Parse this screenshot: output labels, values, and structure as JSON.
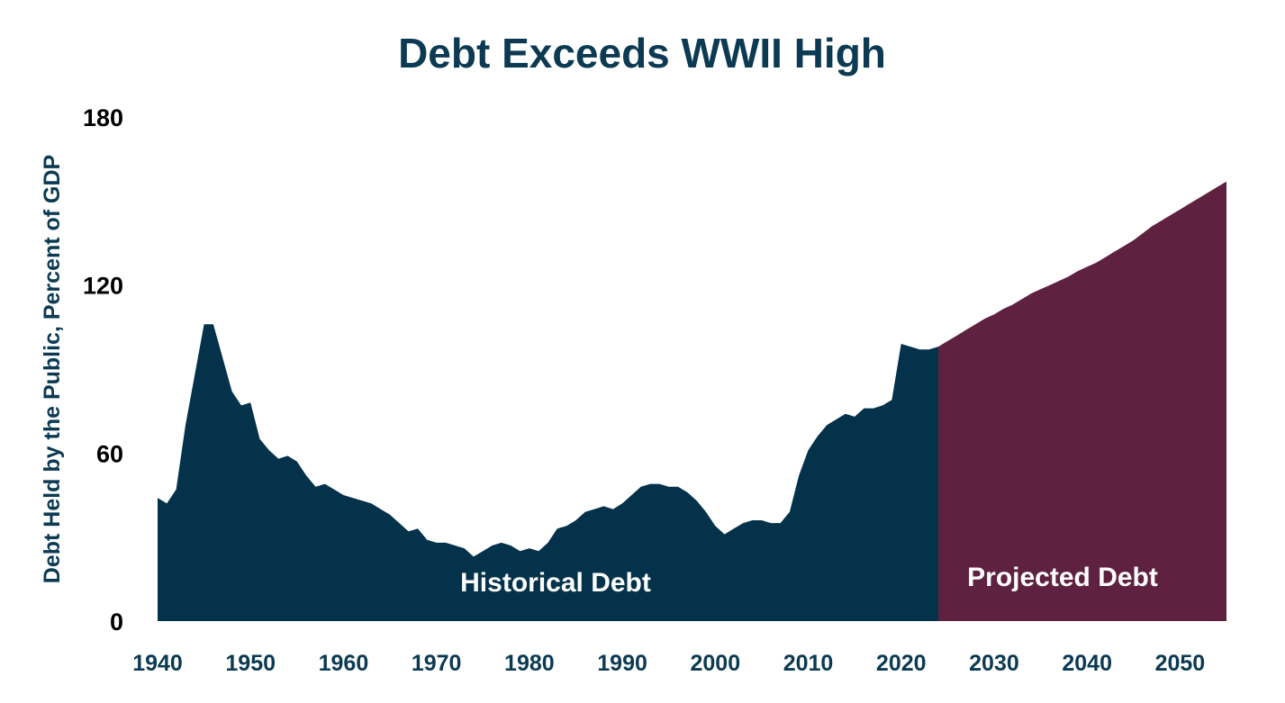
{
  "chart_data": {
    "type": "area",
    "title": "Debt Exceeds WWII High",
    "xlabel": "",
    "ylabel": "Debt Held by the Public, Percent of GDP",
    "xlim": [
      1940,
      2055
    ],
    "ylim": [
      0,
      180
    ],
    "yticks": [
      0,
      60,
      120,
      180
    ],
    "xticks": [
      1940,
      1950,
      1960,
      1970,
      1980,
      1990,
      2000,
      2010,
      2020,
      2030,
      2040,
      2050
    ],
    "grid": false,
    "colors": {
      "historical": "#03324a",
      "projected": "#5e2140",
      "title": "#0b3a52",
      "ytick": "#000000",
      "xtick": "#0b3a52"
    },
    "series": [
      {
        "name": "Historical Debt",
        "x_start": 1940,
        "values": [
          44,
          42,
          47,
          70,
          88,
          106,
          106,
          94,
          82,
          77,
          78,
          65,
          61,
          58,
          59,
          57,
          52,
          48,
          49,
          47,
          45,
          44,
          43,
          42,
          40,
          38,
          35,
          32,
          33,
          29,
          28,
          28,
          27,
          26,
          23,
          25,
          27,
          28,
          27,
          25,
          26,
          25,
          28,
          33,
          34,
          36,
          39,
          40,
          41,
          40,
          42,
          45,
          48,
          49,
          49,
          48,
          48,
          46,
          43,
          39,
          34,
          31,
          33,
          35,
          36,
          36,
          35,
          35,
          39,
          52,
          61,
          66,
          70,
          72,
          74,
          73,
          76,
          76,
          77,
          79,
          99,
          98,
          97,
          97,
          98
        ]
      },
      {
        "name": "Projected Debt",
        "x_start": 2024,
        "values": [
          98,
          100,
          102,
          104,
          106,
          108,
          109.5,
          111.5,
          113,
          115,
          117,
          118.5,
          120,
          121.5,
          123,
          125,
          126.5,
          128,
          130,
          132,
          134,
          136,
          138.5,
          141,
          143,
          145,
          147,
          149,
          151,
          153,
          155,
          157
        ]
      }
    ]
  }
}
